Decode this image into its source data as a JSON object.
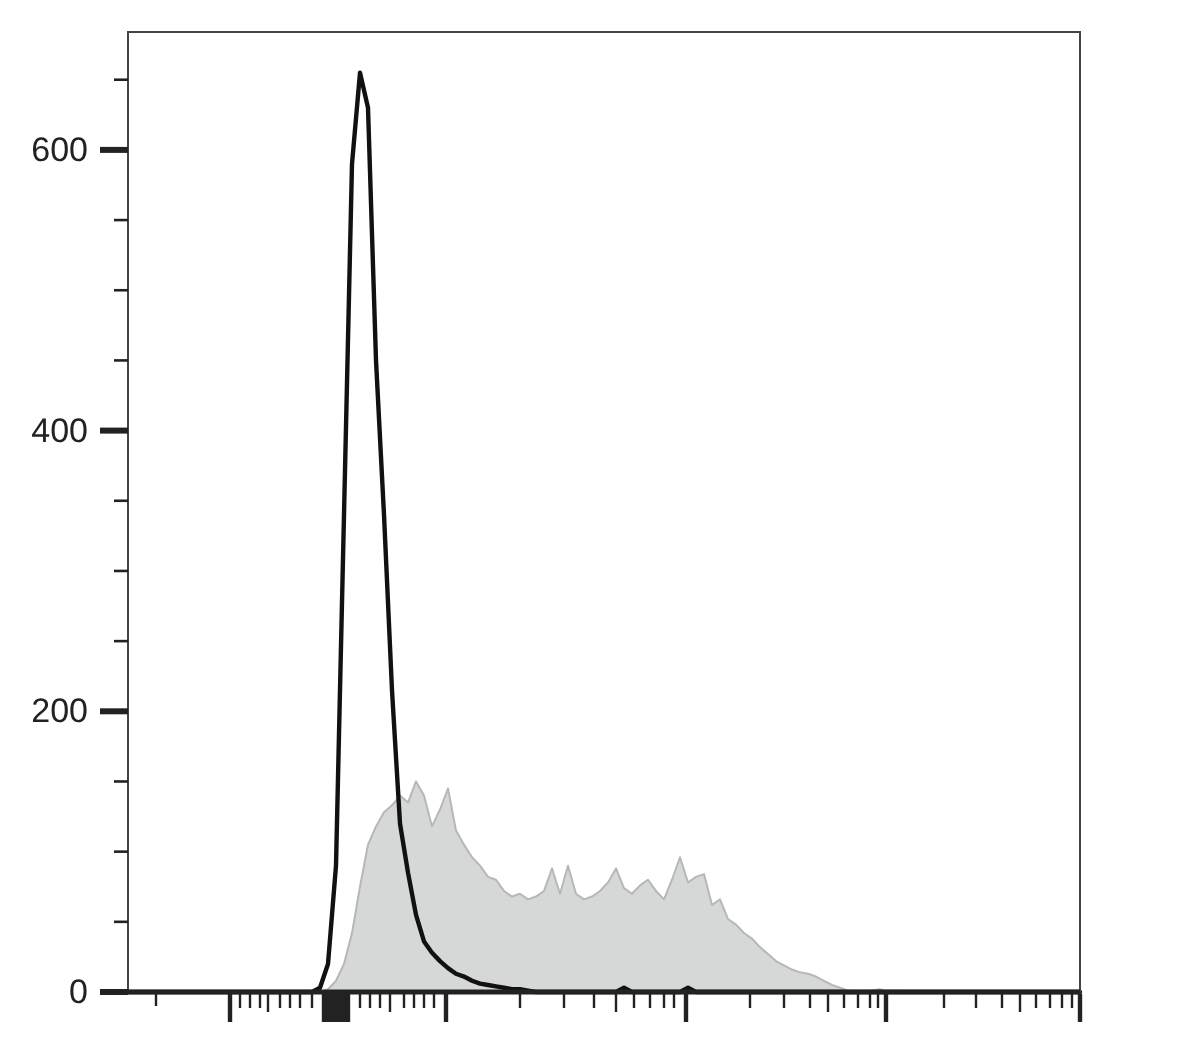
{
  "chart_data": {
    "type": "area",
    "tick_labels": "y",
    "categories": [
      null,
      null,
      null,
      null,
      null,
      null,
      null,
      null,
      null,
      null,
      null,
      null,
      null,
      null,
      null,
      null,
      null,
      null,
      null,
      null,
      null,
      null,
      null,
      null,
      null,
      null,
      null,
      null,
      null,
      null,
      null,
      null,
      null,
      null,
      null,
      null,
      null,
      null,
      null,
      null,
      null,
      null,
      null,
      null,
      null,
      null,
      null,
      null,
      null,
      null,
      null,
      null,
      null,
      null,
      null,
      null,
      null,
      null,
      null,
      null,
      null,
      null,
      null,
      null,
      null,
      null,
      null,
      null,
      null,
      null,
      null,
      null,
      null,
      null,
      null,
      null,
      null,
      null,
      null,
      null,
      null,
      null,
      null,
      null,
      null,
      null,
      null,
      null,
      null,
      null,
      null,
      null,
      null,
      null,
      null,
      null,
      null,
      null,
      null,
      null,
      null,
      null,
      null,
      null,
      null,
      null,
      null,
      null,
      null,
      null,
      null,
      null,
      null,
      null,
      null,
      null,
      null,
      null,
      null,
      null
    ],
    "series": [
      {
        "color": "#d6d8d8",
        "values": [
          0,
          0,
          0,
          0,
          0,
          0,
          0,
          0,
          0,
          0,
          0,
          0,
          0,
          0,
          0,
          0,
          0,
          0,
          0,
          0,
          0,
          0,
          0,
          0,
          0,
          2,
          8,
          20,
          42,
          75,
          105,
          118,
          128,
          133,
          140,
          135,
          150,
          140,
          118,
          130,
          145,
          115,
          105,
          96,
          90,
          82,
          80,
          72,
          68,
          70,
          66,
          68,
          72,
          88,
          70,
          90,
          70,
          66,
          68,
          72,
          78,
          88,
          74,
          70,
          76,
          80,
          72,
          66,
          80,
          96,
          78,
          82,
          84,
          62,
          66,
          52,
          48,
          42,
          38,
          32,
          27,
          22,
          19,
          16,
          14,
          13,
          11,
          8,
          5,
          3,
          1,
          0,
          0,
          1,
          2,
          0,
          1,
          0,
          0,
          0,
          0,
          0,
          0,
          0,
          0,
          0,
          0,
          0,
          0,
          0,
          0,
          0,
          0,
          0,
          0,
          0,
          0,
          0,
          0,
          0
        ]
      },
      {
        "type": "line",
        "color": "#111111",
        "values": [
          0,
          0,
          0,
          0,
          0,
          0,
          0,
          0,
          0,
          0,
          0,
          0,
          0,
          0,
          0,
          0,
          0,
          0,
          0,
          0,
          0,
          0,
          0,
          0,
          3,
          20,
          90,
          340,
          590,
          655,
          630,
          450,
          340,
          215,
          120,
          85,
          55,
          36,
          28,
          22,
          17,
          13,
          11,
          8,
          6,
          5,
          4,
          3,
          2,
          2,
          1,
          0,
          0,
          0,
          0,
          0,
          0,
          0,
          0,
          0,
          0,
          0,
          3,
          0,
          0,
          0,
          0,
          0,
          0,
          0,
          3,
          0,
          0,
          0,
          0,
          0,
          0,
          0,
          0,
          0,
          0,
          0,
          0,
          0,
          0,
          0,
          0,
          0,
          0,
          0,
          0,
          0,
          0,
          0,
          0,
          0,
          0,
          0,
          0,
          0,
          0,
          0,
          0,
          0,
          0,
          0,
          0,
          0,
          0,
          0,
          0,
          0,
          0,
          0,
          0,
          0,
          0,
          0,
          0,
          0
        ]
      }
    ],
    "ylim": [
      0,
      684
    ],
    "yticks": [
      0,
      {
        "value": 50,
        "label": null
      },
      {
        "value": 100,
        "label": null
      },
      {
        "value": 150,
        "label": null
      },
      200,
      {
        "value": 250,
        "label": null
      },
      {
        "value": 300,
        "label": null
      },
      {
        "value": 350,
        "label": null
      },
      400,
      {
        "value": 450,
        "label": null
      },
      {
        "value": 500,
        "label": null
      },
      {
        "value": 550,
        "label": null
      },
      600,
      {
        "value": 650,
        "label": null
      }
    ]
  }
}
